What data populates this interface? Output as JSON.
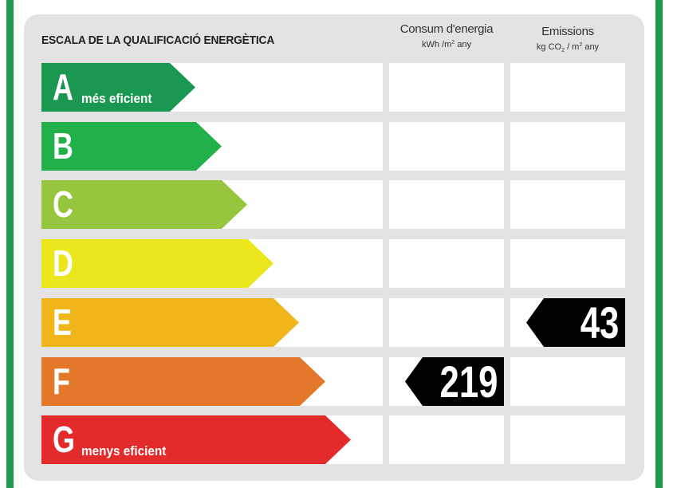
{
  "title": "ESCALA DE LA QUALIFICACIÓ ENERGÈTICA",
  "columns": {
    "consumption": {
      "label": "Consum d'energia",
      "unit_pre": "kWh /m",
      "unit_exp": "2",
      "unit_post": " any"
    },
    "emissions": {
      "label": "Emissions",
      "unit_pre": "kg CO",
      "unit_sub": "2",
      "unit_mid": " / m",
      "unit_exp": "2",
      "unit_post": " any"
    }
  },
  "ratings": [
    {
      "letter": "A",
      "sublabel": "més eficient",
      "color": "#1a9851"
    },
    {
      "letter": "B",
      "sublabel": "",
      "color": "#22b04b"
    },
    {
      "letter": "C",
      "sublabel": "",
      "color": "#96c63d"
    },
    {
      "letter": "D",
      "sublabel": "",
      "color": "#ece71c"
    },
    {
      "letter": "E",
      "sublabel": "",
      "color": "#f0b51a"
    },
    {
      "letter": "F",
      "sublabel": "",
      "color": "#e3782b"
    },
    {
      "letter": "G",
      "sublabel": "menys eficient",
      "color": "#e32b2b"
    }
  ],
  "results": {
    "consumption": {
      "value": "219",
      "rating": "F"
    },
    "emissions": {
      "value": "43",
      "rating": "E"
    }
  }
}
